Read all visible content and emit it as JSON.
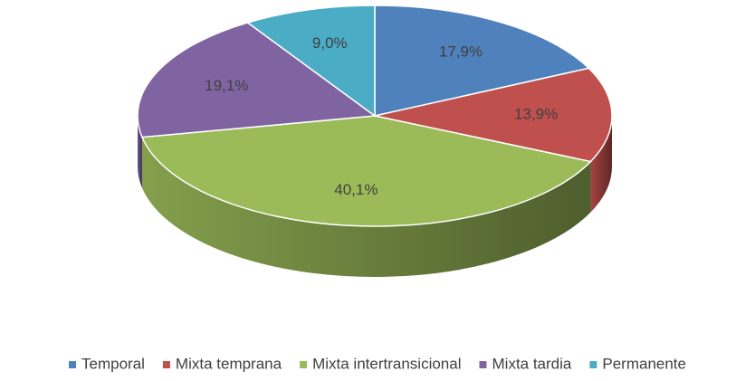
{
  "chart_data": {
    "type": "pie",
    "categories": [
      "Temporal",
      "Mixta temprana",
      "Mixta intertransicional",
      "Mixta tardia",
      "Permanente"
    ],
    "values": [
      17.9,
      13.9,
      40.1,
      19.1,
      9.0
    ],
    "value_labels": [
      "17,9%",
      "13,9%",
      "40,1%",
      "19,1%",
      "9,0%"
    ],
    "colors": [
      "#4f81bd",
      "#c0504d",
      "#9bbb59",
      "#8064a2",
      "#4bacc6"
    ],
    "legend": "bottom"
  }
}
